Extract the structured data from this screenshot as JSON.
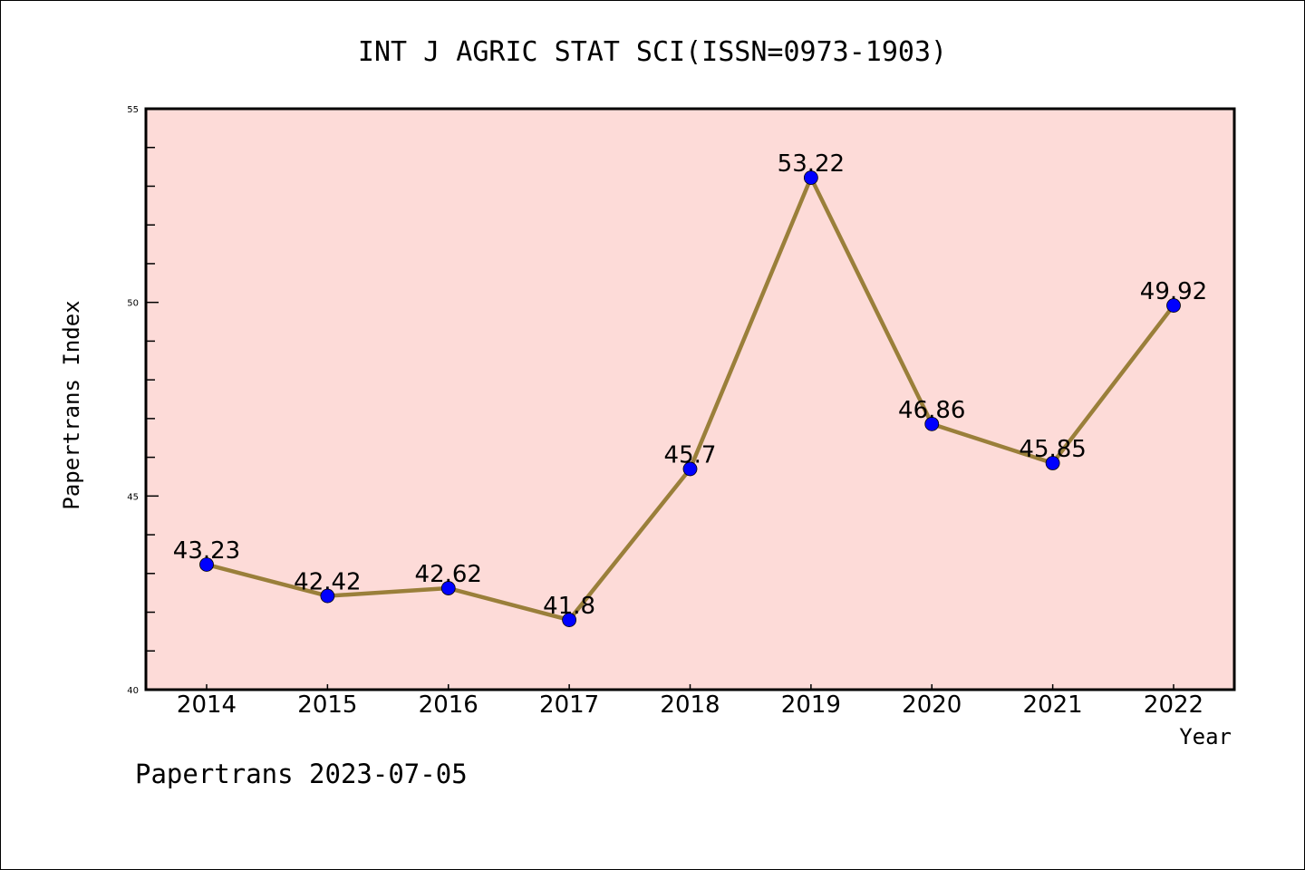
{
  "chart_data": {
    "type": "line",
    "title": "INT J AGRIC STAT SCI(ISSN=0973-1903)",
    "xlabel": "Year",
    "ylabel": "Papertrans Index",
    "x": [
      "2014",
      "2015",
      "2016",
      "2017",
      "2018",
      "2019",
      "2020",
      "2021",
      "2022"
    ],
    "series": [
      {
        "name": "Papertrans Index",
        "values": [
          43.23,
          42.42,
          42.62,
          41.8,
          45.7,
          53.22,
          46.86,
          45.85,
          49.92
        ]
      }
    ],
    "data_labels": [
      "43.23",
      "42.42",
      "42.62",
      "41.8",
      "45.7",
      "53.22",
      "46.86",
      "45.85",
      "49.92"
    ],
    "ylim": [
      40,
      55
    ],
    "yticks": [
      "40",
      "45",
      "50",
      "55"
    ],
    "grid": false,
    "footer": "Papertrans 2023-07-05",
    "colors": {
      "plot_bg": "#fddbd8",
      "line": "#9a7f3a",
      "marker": "#0000ff"
    }
  }
}
